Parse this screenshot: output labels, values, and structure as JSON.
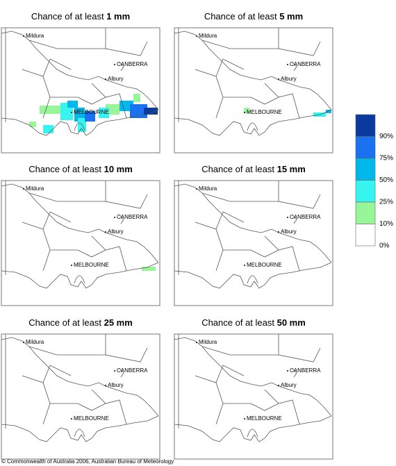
{
  "panels": [
    {
      "prefix": "Chance of at least",
      "amount": "1 mm"
    },
    {
      "prefix": "Chance of at least",
      "amount": "5 mm"
    },
    {
      "prefix": "Chance of at least",
      "amount": "10 mm"
    },
    {
      "prefix": "Chance of at least",
      "amount": "15 mm"
    },
    {
      "prefix": "Chance of at least",
      "amount": "25 mm"
    },
    {
      "prefix": "Chance of at least",
      "amount": "50 mm"
    }
  ],
  "places": {
    "mildura": "Mildura",
    "canberra": "CANBERRA",
    "albury": "Albury",
    "melbourne": "MELBOURNE"
  },
  "legend": [
    {
      "label": "90%",
      "color": "#0a3a9e"
    },
    {
      "label": "75%",
      "color": "#1a72f0"
    },
    {
      "label": "50%",
      "color": "#00b8ea"
    },
    {
      "label": "25%",
      "color": "#38f4f0"
    },
    {
      "label": "10%",
      "color": "#98f598"
    },
    {
      "label": "0%",
      "color": "#ffffff"
    }
  ],
  "footer": "© Commonwealth of Australia 2006, Australian Bureau of Meteorology"
}
